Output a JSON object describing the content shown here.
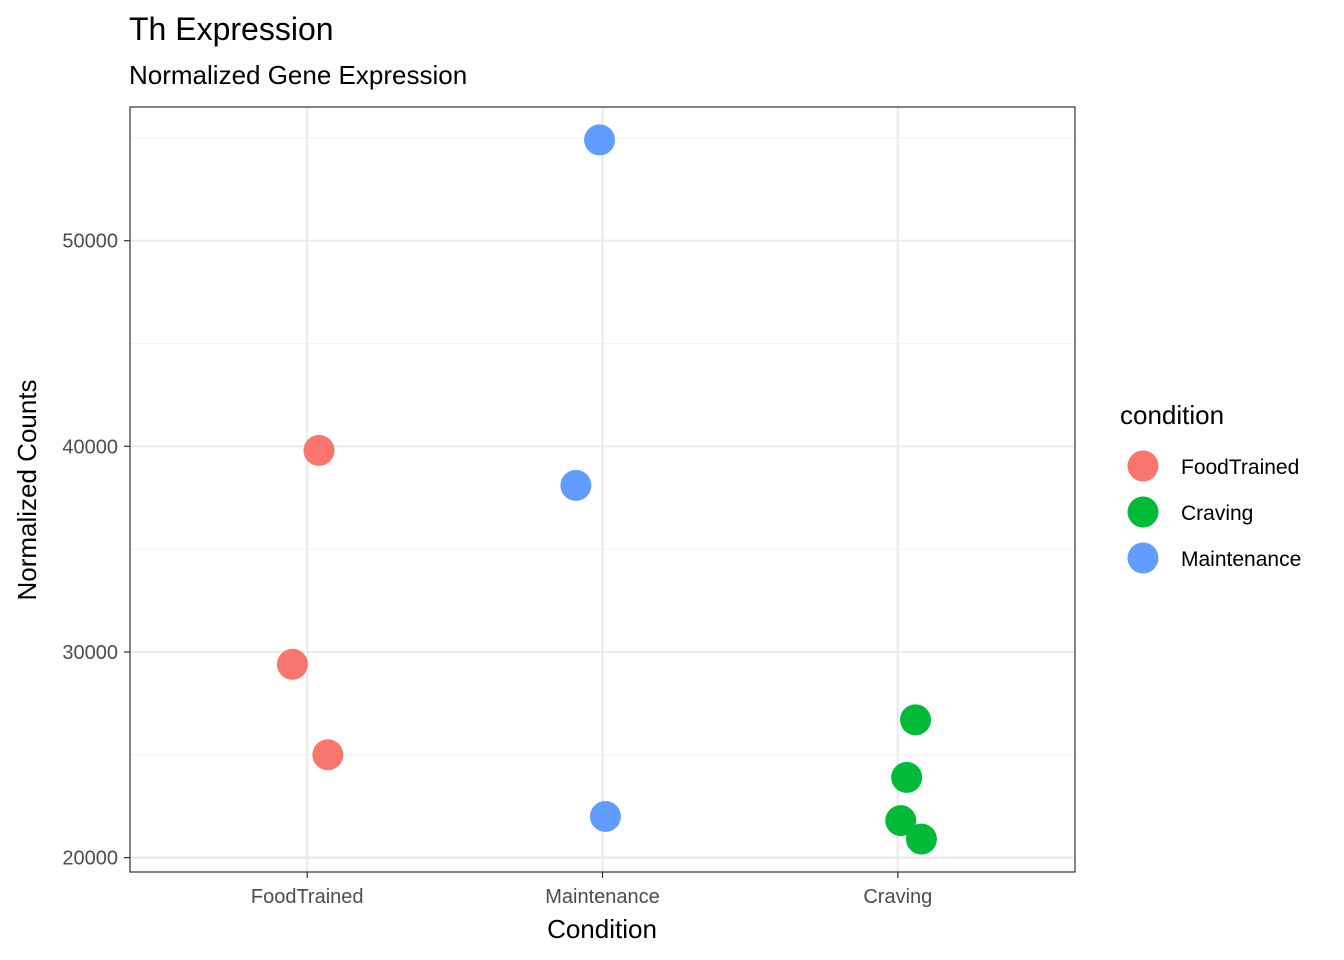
{
  "chart_data": {
    "type": "scatter",
    "title": "Th Expression",
    "subtitle": "Normalized Gene Expression",
    "xlabel": "Condition",
    "ylabel": "Normalized Counts",
    "categories": [
      "FoodTrained",
      "Maintenance",
      "Craving"
    ],
    "ylim": [
      19300,
      56500
    ],
    "yticks": [
      20000,
      30000,
      40000,
      50000
    ],
    "yticks_minor": [
      25000,
      35000,
      45000,
      55000
    ],
    "grid": true,
    "legend": {
      "title": "condition",
      "placement": "right",
      "entries": [
        {
          "label": "FoodTrained",
          "color": "#F8766D"
        },
        {
          "label": "Craving",
          "color": "#00BA38"
        },
        {
          "label": "Maintenance",
          "color": "#619CFF"
        }
      ]
    },
    "series": [
      {
        "name": "FoodTrained",
        "color": "#F8766D",
        "category": "FoodTrained",
        "points": [
          {
            "jitter": 0.04,
            "y": 39800
          },
          {
            "jitter": -0.05,
            "y": 29400
          },
          {
            "jitter": 0.07,
            "y": 25000
          }
        ]
      },
      {
        "name": "Maintenance",
        "color": "#619CFF",
        "category": "Maintenance",
        "points": [
          {
            "jitter": -0.01,
            "y": 54900
          },
          {
            "jitter": -0.09,
            "y": 38100
          },
          {
            "jitter": 0.01,
            "y": 22000
          }
        ]
      },
      {
        "name": "Craving",
        "color": "#00BA38",
        "category": "Craving",
        "points": [
          {
            "jitter": 0.06,
            "y": 26700
          },
          {
            "jitter": 0.03,
            "y": 23900
          },
          {
            "jitter": 0.01,
            "y": 21800
          },
          {
            "jitter": 0.08,
            "y": 20900
          }
        ]
      }
    ]
  }
}
